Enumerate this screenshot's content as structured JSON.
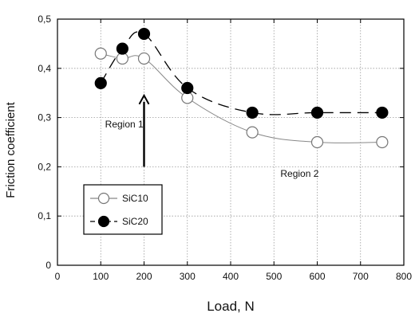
{
  "chart_data": {
    "type": "scatter",
    "xlabel": "Load, N",
    "ylabel": "Friction coefficient",
    "xlim": [
      0,
      800
    ],
    "ylim": [
      0,
      0.5
    ],
    "x_ticks": [
      0,
      100,
      200,
      300,
      400,
      500,
      600,
      700,
      800
    ],
    "y_ticks": [
      0,
      0.1,
      0.2,
      0.3,
      0.4,
      0.5
    ],
    "x_tick_labels": [
      "0",
      "100",
      "200",
      "300",
      "400",
      "500",
      "600",
      "700",
      "800"
    ],
    "y_tick_labels": [
      "0",
      "0,1",
      "0,2",
      "0,3",
      "0,4",
      "0,5"
    ],
    "grid": true,
    "legend": "bottom-left",
    "series": [
      {
        "name": "SiC10",
        "marker": "open-circle",
        "line": "solid",
        "color": "#888888",
        "x": [
          100,
          150,
          200,
          300,
          450,
          600,
          750
        ],
        "y": [
          0.43,
          0.42,
          0.42,
          0.34,
          0.27,
          0.25,
          0.25
        ]
      },
      {
        "name": "SiC20",
        "marker": "filled-circle",
        "line": "dashed",
        "color": "#000000",
        "x": [
          100,
          150,
          200,
          300,
          450,
          600,
          750
        ],
        "y": [
          0.37,
          0.44,
          0.47,
          0.36,
          0.31,
          0.31,
          0.31
        ]
      }
    ],
    "annotations": [
      {
        "text": "Region 1",
        "x": 110,
        "y": 0.28
      },
      {
        "text": "Region 2",
        "x": 515,
        "y": 0.18
      }
    ],
    "arrow": {
      "x": 200,
      "y_from": 0.2,
      "y_to": 0.345
    }
  }
}
